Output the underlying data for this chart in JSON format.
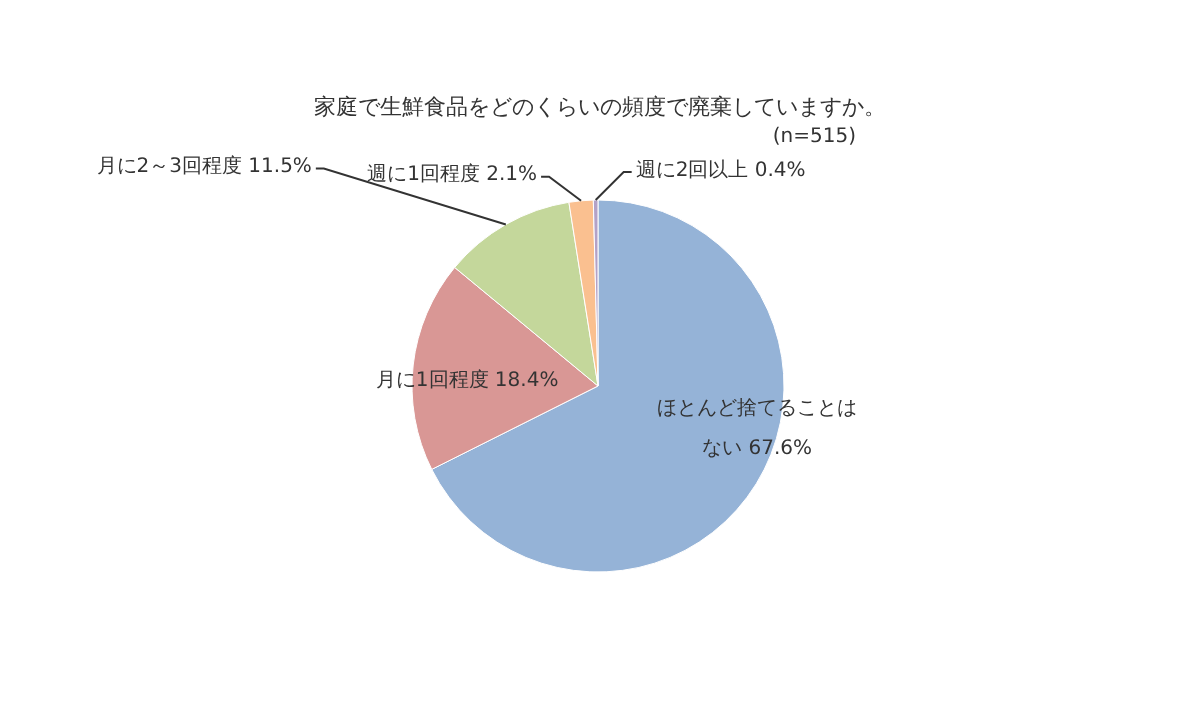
{
  "chart_data": {
    "type": "pie",
    "title": "家庭で生鮮食品をどのくらいの頻度で廃棄していますか。",
    "annotations": [
      "(n=515)"
    ],
    "categories": [
      "ほとんど捨てることはない",
      "月に1回程度",
      "月に2～3回程度",
      "週に1回程度",
      "週に2回以上"
    ],
    "values": [
      67.6,
      18.4,
      11.5,
      2.1,
      0.4
    ],
    "value_labels": [
      "67.6%",
      "18.4%",
      "11.5%",
      "2.1%",
      "0.4%"
    ],
    "colors": [
      "#95b3d7",
      "#d99795",
      "#c4d79b",
      "#fac090",
      "#b3a2c7"
    ]
  }
}
